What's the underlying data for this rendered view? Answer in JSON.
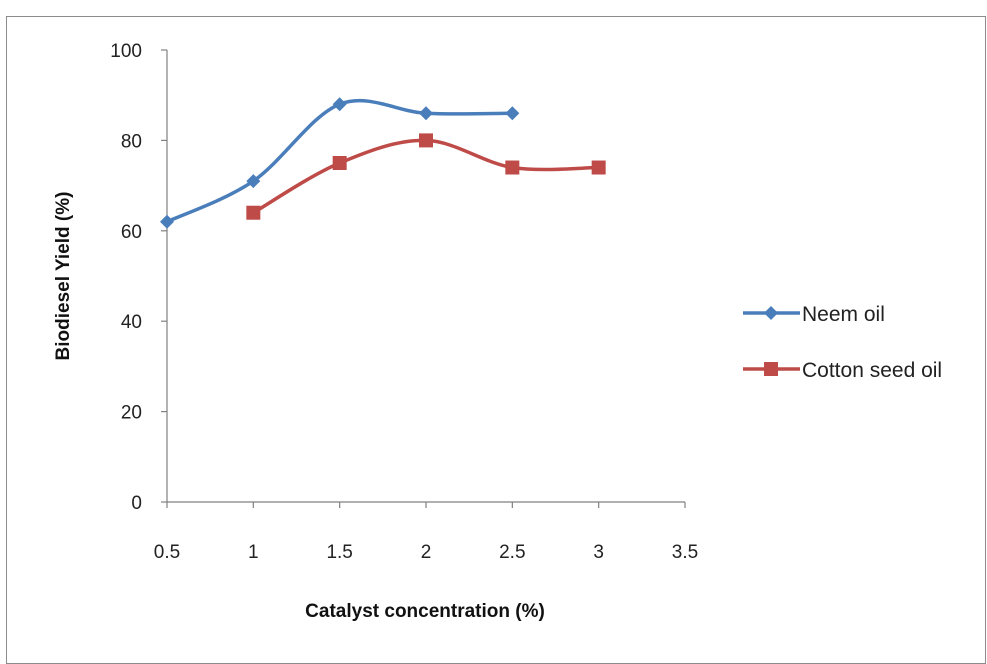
{
  "colors": {
    "series_1": "#4a7ebb",
    "series_2": "#be4b48",
    "axis": "#808080"
  },
  "chart_data": {
    "type": "line",
    "title": "",
    "xlabel": "Catalyst concentration (%)",
    "ylabel": "Biodiesel Yield (%)",
    "xlim": [
      0.5,
      3.5
    ],
    "ylim": [
      0,
      100
    ],
    "x_ticks": [
      "0.5",
      "1",
      "1.5",
      "2",
      "2.5",
      "3",
      "3.5"
    ],
    "y_ticks": [
      "0",
      "20",
      "40",
      "60",
      "80",
      "100"
    ],
    "grid": false,
    "legend_position": "right",
    "smooth": true,
    "series": [
      {
        "name": "Neem oil",
        "marker": "diamond",
        "color": "#4a7ebb",
        "x": [
          0.5,
          1,
          1.5,
          2,
          2.5
        ],
        "y": [
          62,
          71,
          88,
          86,
          86
        ]
      },
      {
        "name": "Cotton seed oil",
        "marker": "square",
        "color": "#be4b48",
        "x": [
          1,
          1.5,
          2,
          2.5,
          3
        ],
        "y": [
          64,
          75,
          80,
          74,
          74
        ]
      }
    ]
  }
}
